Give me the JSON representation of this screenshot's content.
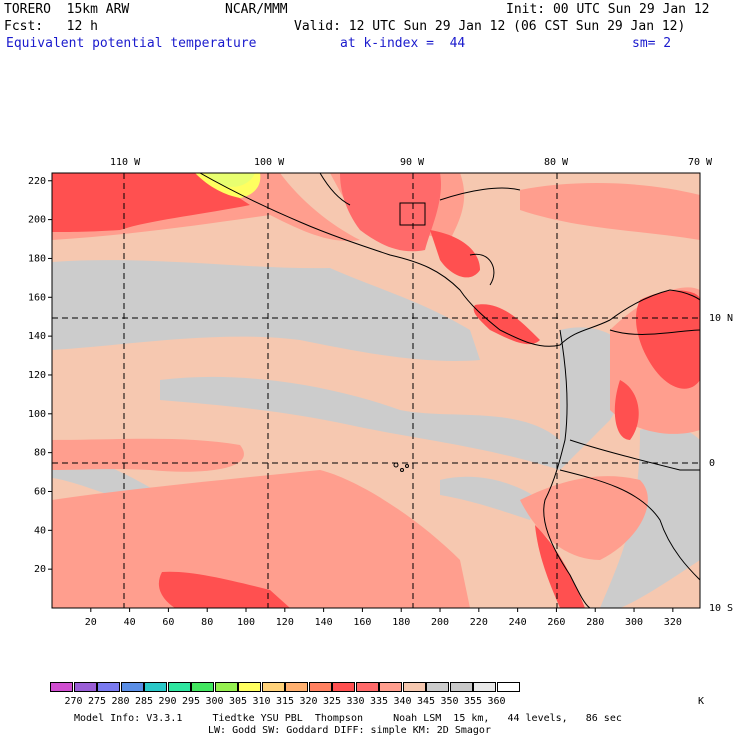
{
  "header": {
    "model": "TORERO  15km ARW",
    "org": "NCAR/MMM",
    "init": "Init: 00 UTC Sun 29 Jan 12",
    "fcst": "Fcst:   12 h",
    "valid": "Valid: 12 UTC Sun 29 Jan 12 (06 CST Sun 29 Jan 12)",
    "field": "Equivalent potential temperature",
    "level": "at k-index =  44",
    "smooth": "sm= 2"
  },
  "map": {
    "lon_labels": [
      "110 W",
      "100 W",
      "90 W",
      "80 W",
      "70 W"
    ],
    "lat_labels": [
      "10 N",
      "0",
      "10 S"
    ],
    "y_ticks": [
      "220",
      "200",
      "180",
      "160",
      "140",
      "120",
      "100",
      "80",
      "60",
      "40",
      "20"
    ],
    "x_ticks": [
      "20",
      "40",
      "60",
      "80",
      "100",
      "120",
      "140",
      "160",
      "180",
      "200",
      "220",
      "240",
      "260",
      "280",
      "300",
      "320"
    ]
  },
  "legend": {
    "colors": [
      "#d04ed0",
      "#9a5ed6",
      "#7a7af0",
      "#5a8ee6",
      "#2ac8c8",
      "#2ee6a0",
      "#42e660",
      "#96f050",
      "#ffff60",
      "#ffd27a",
      "#ffb070",
      "#ff8060",
      "#ff5050",
      "#ff6a6a",
      "#ff9e8e",
      "#f6c8b0",
      "#cccccc",
      "#c8c8c8",
      "#e8e8e8",
      "#ffffff"
    ],
    "labels": [
      "270",
      "275",
      "280",
      "285",
      "290",
      "295",
      "300",
      "305",
      "310",
      "315",
      "320",
      "325",
      "330",
      "335",
      "340",
      "345",
      "350",
      "355",
      "360"
    ],
    "unit": "K"
  },
  "footer": {
    "line1": "Model Info: V3.3.1     Tiedtke YSU PBL  Thompson     Noah LSM  15 km,   44 levels,   86 sec",
    "line2": "LW: Godd SW: Goddard DIFF: simple KM: 2D Smagor"
  }
}
